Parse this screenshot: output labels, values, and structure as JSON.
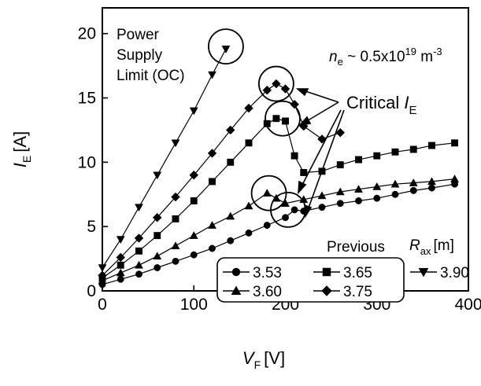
{
  "chart_data": {
    "type": "line",
    "xlabel": "V",
    "xlabel_sub": "F",
    "xlabel_unit": "[V]",
    "ylabel": "I",
    "ylabel_sub": "E",
    "ylabel_unit": "[A]",
    "xlim": [
      0,
      400
    ],
    "ylim": [
      0,
      22
    ],
    "x_ticks": [
      0,
      100,
      200,
      300,
      400
    ],
    "y_ticks": [
      0,
      5,
      10,
      15,
      20
    ],
    "grid": false,
    "legend": {
      "placement": "bottom-right",
      "title_prefix": "Previous",
      "title_var": "R",
      "title_sub": "ax",
      "title_unit": "[m]"
    },
    "series": [
      {
        "name": "3.53",
        "marker": "circle",
        "x": [
          0,
          20,
          40,
          60,
          80,
          100,
          120,
          140,
          160,
          180,
          200,
          210,
          220,
          240,
          260,
          280,
          300,
          320,
          340,
          360,
          385
        ],
        "y": [
          0.5,
          0.9,
          1.3,
          1.8,
          2.3,
          2.8,
          3.3,
          3.9,
          4.5,
          5.1,
          5.7,
          6.3,
          6.2,
          6.5,
          6.8,
          7.0,
          7.2,
          7.5,
          7.8,
          8.0,
          8.3
        ]
      },
      {
        "name": "3.60",
        "marker": "triangle-up",
        "x": [
          0,
          20,
          40,
          60,
          80,
          100,
          120,
          140,
          160,
          180,
          190,
          200,
          220,
          240,
          260,
          280,
          300,
          320,
          340,
          360,
          385
        ],
        "y": [
          0.8,
          1.4,
          2.0,
          2.7,
          3.5,
          4.3,
          5.1,
          5.8,
          6.6,
          7.6,
          7.2,
          6.8,
          7.1,
          7.4,
          7.7,
          7.9,
          8.1,
          8.3,
          8.4,
          8.5,
          8.7
        ]
      },
      {
        "name": "3.65",
        "marker": "square",
        "x": [
          0,
          20,
          40,
          60,
          80,
          100,
          120,
          140,
          160,
          180,
          190,
          200,
          210,
          220,
          240,
          260,
          280,
          300,
          320,
          340,
          360,
          385
        ],
        "y": [
          1.0,
          2.0,
          3.1,
          4.3,
          5.6,
          7.0,
          8.5,
          10.0,
          11.5,
          13.0,
          13.4,
          13.2,
          10.5,
          9.2,
          9.3,
          9.8,
          10.2,
          10.5,
          10.8,
          11.0,
          11.3,
          11.5
        ]
      },
      {
        "name": "3.75",
        "marker": "diamond",
        "x": [
          0,
          20,
          40,
          60,
          80,
          100,
          120,
          140,
          160,
          180,
          190,
          200,
          210,
          220,
          240,
          260
        ],
        "y": [
          1.2,
          2.6,
          4.1,
          5.7,
          7.3,
          9.0,
          10.7,
          12.5,
          14.2,
          15.6,
          16.1,
          15.7,
          14.5,
          12.8,
          11.8,
          12.3
        ]
      },
      {
        "name": "3.90",
        "marker": "triangle-down",
        "x": [
          0,
          20,
          40,
          60,
          80,
          100,
          120,
          135
        ],
        "y": [
          1.8,
          4.0,
          6.5,
          9.0,
          11.5,
          14.0,
          16.8,
          18.8
        ]
      }
    ],
    "annotations": {
      "power_supply": [
        "Power",
        "Supply",
        "Limit (OC)"
      ],
      "density_prefix": "n",
      "density_sub": "e",
      "density_body": " ~ 0.5x10",
      "density_exp": "19",
      "density_unit": " m",
      "density_unit_exp": "-3",
      "critical_prefix": "Critical ",
      "critical_var": "I",
      "critical_sub": "E"
    },
    "circles": [
      {
        "x": 135,
        "y": 19.0
      },
      {
        "x": 190,
        "y": 16.1
      },
      {
        "x": 197,
        "y": 13.4
      },
      {
        "x": 182,
        "y": 7.6
      },
      {
        "x": 203,
        "y": 6.3
      }
    ]
  }
}
